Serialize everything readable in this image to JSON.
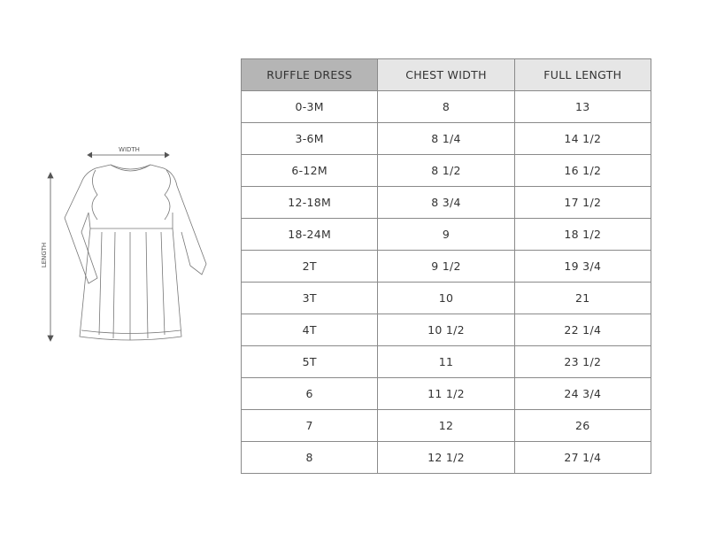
{
  "illustration": {
    "width_label": "WIDTH",
    "length_label": "LENGTH"
  },
  "table": {
    "headers": [
      "RUFFLE DRESS",
      "CHEST WIDTH",
      "FULL LENGTH"
    ],
    "rows": [
      [
        "0-3M",
        "8",
        "13"
      ],
      [
        "3-6M",
        "8 1/4",
        "14 1/2"
      ],
      [
        "6-12M",
        "8 1/2",
        "16 1/2"
      ],
      [
        "12-18M",
        "8 3/4",
        "17 1/2"
      ],
      [
        "18-24M",
        "9",
        "18 1/2"
      ],
      [
        "2T",
        "9 1/2",
        "19 3/4"
      ],
      [
        "3T",
        "10",
        "21"
      ],
      [
        "4T",
        "10 1/2",
        "22 1/4"
      ],
      [
        "5T",
        "11",
        "23 1/2"
      ],
      [
        "6",
        "11 1/2",
        "24 3/4"
      ],
      [
        "7",
        "12",
        "26"
      ],
      [
        "8",
        "12 1/2",
        "27 1/4"
      ]
    ]
  }
}
